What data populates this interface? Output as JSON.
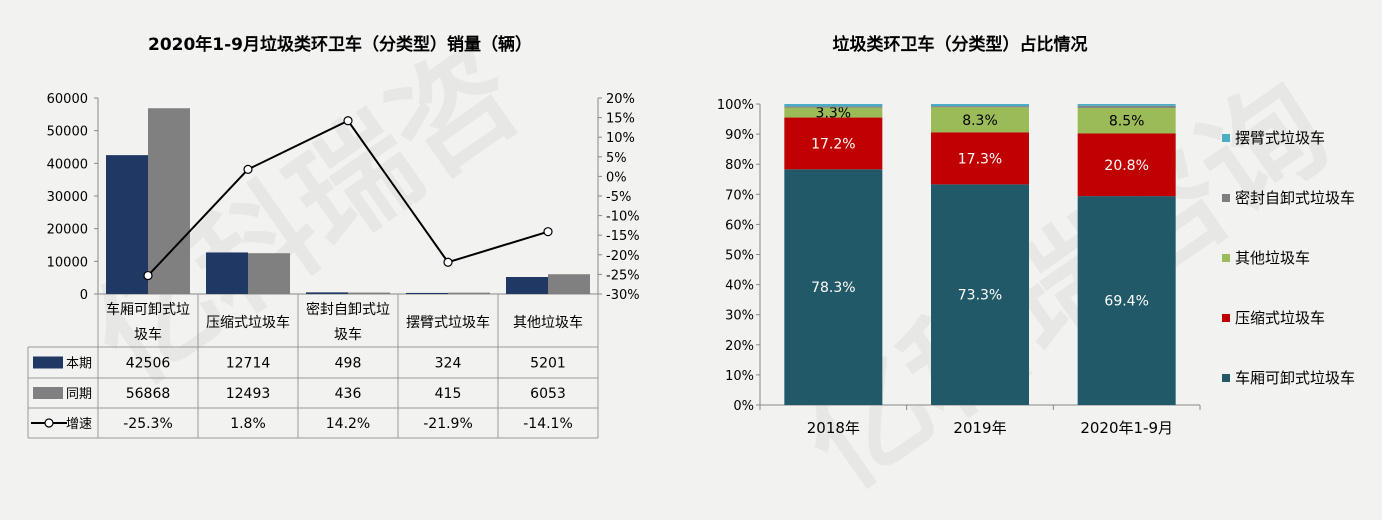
{
  "chart_data": [
    {
      "type": "bar",
      "title": "2020年1-9月垃圾类环卫车（分类型）销量（辆）",
      "categories": [
        "车厢可卸式垃圾车",
        "压缩式垃圾车",
        "密封自卸式垃圾车",
        "摆臂式垃圾车",
        "其他垃圾车"
      ],
      "category_lines": [
        [
          "车厢可卸式垃",
          "圾车"
        ],
        [
          "压缩式垃圾车"
        ],
        [
          "密封自卸式垃",
          "圾车"
        ],
        [
          "摆臂式垃圾车"
        ],
        [
          "其他垃圾车"
        ]
      ],
      "series": [
        {
          "name": "本期",
          "kind": "bar",
          "color": "#1f3864",
          "values": [
            42506,
            12714,
            498,
            324,
            5201
          ]
        },
        {
          "name": "同期",
          "kind": "bar",
          "color": "#808080",
          "values": [
            56868,
            12493,
            436,
            415,
            6053
          ]
        },
        {
          "name": "增速",
          "kind": "line",
          "axis": "right",
          "color": "#000000",
          "values": [
            -25.3,
            1.8,
            14.2,
            -21.9,
            -14.1
          ]
        }
      ],
      "table_rows": [
        [
          "42506",
          "12714",
          "498",
          "324",
          "5201"
        ],
        [
          "56868",
          "12493",
          "436",
          "415",
          "6053"
        ],
        [
          "-25.3%",
          "1.8%",
          "14.2%",
          "-21.9%",
          "-14.1%"
        ]
      ],
      "ylim": [
        0,
        60000
      ],
      "yticks": [
        "0",
        "10000",
        "20000",
        "30000",
        "40000",
        "50000",
        "60000"
      ],
      "y2lim": [
        -30,
        20
      ],
      "y2ticks": [
        "-30%",
        "-25%",
        "-20%",
        "-15%",
        "-10%",
        "-5%",
        "0%",
        "5%",
        "10%",
        "15%",
        "20%"
      ],
      "grid": false
    },
    {
      "type": "bar",
      "stacked": true,
      "title": "垃圾类环卫车（分类型）占比情况",
      "categories": [
        "2018年",
        "2019年",
        "2020年1-9月"
      ],
      "series": [
        {
          "name": "车厢可卸式垃圾车",
          "color": "#215968",
          "values": [
            78.3,
            73.3,
            69.4
          ],
          "labels": [
            "78.3%",
            "73.3%",
            "69.4%"
          ]
        },
        {
          "name": "压缩式垃圾车",
          "color": "#c00000",
          "values": [
            17.2,
            17.3,
            20.8
          ],
          "labels": [
            "17.2%",
            "17.3%",
            "20.8%"
          ]
        },
        {
          "name": "其他垃圾车",
          "color": "#9bbb59",
          "values": [
            3.3,
            8.3,
            8.5
          ],
          "labels": [
            "3.3%",
            "8.3%",
            "8.5%"
          ]
        },
        {
          "name": "密封自卸式垃圾车",
          "color": "#7f7f7f",
          "values": [
            0.4,
            0.4,
            0.7
          ],
          "labels": [
            "",
            "",
            ""
          ]
        },
        {
          "name": "摆臂式垃圾车",
          "color": "#4bacc6",
          "values": [
            0.8,
            0.7,
            0.6
          ],
          "labels": [
            "",
            "",
            ""
          ]
        }
      ],
      "legend_order": [
        "摆臂式垃圾车",
        "密封自卸式垃圾车",
        "其他垃圾车",
        "压缩式垃圾车",
        "车厢可卸式垃圾车"
      ],
      "ylim": [
        0,
        100
      ],
      "yticks": [
        "0%",
        "10%",
        "20%",
        "30%",
        "40%",
        "50%",
        "60%",
        "70%",
        "80%",
        "90%",
        "100%"
      ],
      "legend": "right",
      "grid": false
    }
  ]
}
